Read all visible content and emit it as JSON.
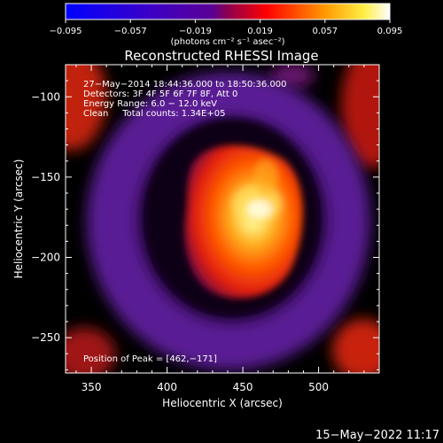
{
  "chart_data": {
    "type": "heatmap",
    "title": "Reconstructed RHESSI Image",
    "xlabel": "Heliocentric X (arcsec)",
    "ylabel": "Heliocentric Y (arcsec)",
    "xlim": [
      333,
      540
    ],
    "ylim": [
      -272,
      -80
    ],
    "x_ticks": [
      350,
      400,
      450,
      500
    ],
    "y_ticks": [
      -100,
      -150,
      -200,
      -250
    ],
    "colorbar": {
      "min": -0.095,
      "max": 0.095,
      "ticks": [
        "−0.095",
        "−0.057",
        "−0.019",
        "0.019",
        "0.057",
        "0.095"
      ],
      "units_label": "(photons cm⁻² s⁻¹ asec⁻²)",
      "colors": [
        "#0000ff",
        "#5a0096",
        "#ff0000",
        "#ff9900",
        "#ffffff"
      ]
    },
    "info_lines": [
      "27−May−2014 18:44:36.000 to 18:50:36.000",
      "Detectors: 3F 4F 5F 6F 7F 8F, Att 0",
      "Energy Range: 6.0 − 12.0 keV",
      "Clean     Total counts: 1.34E+05"
    ],
    "peak_label": "Position of Peak = [462,−171]",
    "peak": [
      462,
      -171
    ],
    "colors": {
      "background": "#000000",
      "ring": "#6a1fa0",
      "ring_dark": "#3a0d66",
      "core": "#ff6a00",
      "peak": "#ffffd0",
      "corner": "#d21e0a"
    }
  },
  "footer": {
    "timestamp": "15−May−2022 11:17"
  }
}
